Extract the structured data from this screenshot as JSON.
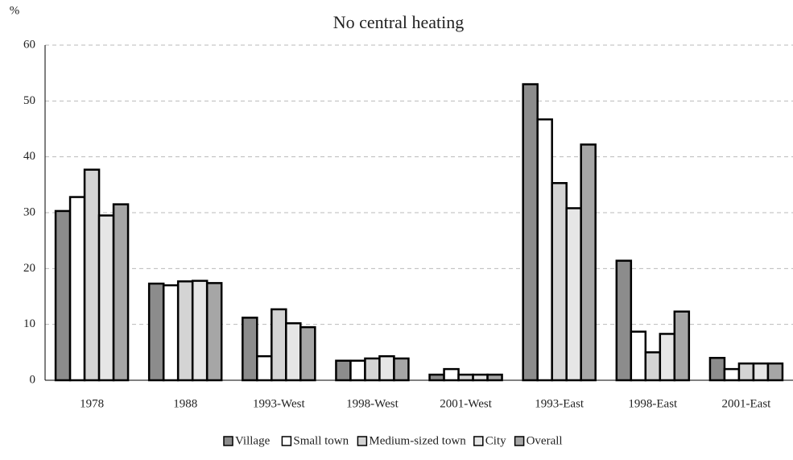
{
  "chart_data": {
    "type": "bar",
    "title": "No central heating",
    "y_label": "%",
    "categories": [
      "1978",
      "1988",
      "1993-West",
      "1998-West",
      "2001-West",
      "1993-East",
      "1998-East",
      "2001-East"
    ],
    "series": [
      {
        "name": "Village",
        "color": "#8c8c8c",
        "values": [
          30.3,
          17.3,
          11.2,
          3.5,
          1.0,
          53.0,
          21.4,
          4.0
        ]
      },
      {
        "name": "Small town",
        "color": "#ffffff",
        "values": [
          32.8,
          17.0,
          4.3,
          3.5,
          2.0,
          46.7,
          8.7,
          2.0
        ]
      },
      {
        "name": "Medium-sized town",
        "color": "#d4d4d4",
        "values": [
          37.7,
          17.7,
          12.7,
          3.9,
          1.0,
          35.3,
          5.0,
          3.0
        ]
      },
      {
        "name": "City",
        "color": "#e6e6e6",
        "values": [
          29.5,
          17.8,
          10.2,
          4.3,
          1.0,
          30.8,
          8.3,
          3.0
        ]
      },
      {
        "name": "Overall",
        "color": "#a6a6a6",
        "values": [
          31.5,
          17.4,
          9.5,
          3.9,
          1.0,
          42.2,
          12.3,
          3.0
        ]
      }
    ],
    "ylim": [
      0,
      60
    ],
    "yticks": [
      0,
      10,
      20,
      30,
      40,
      50,
      60
    ],
    "grid": true
  }
}
